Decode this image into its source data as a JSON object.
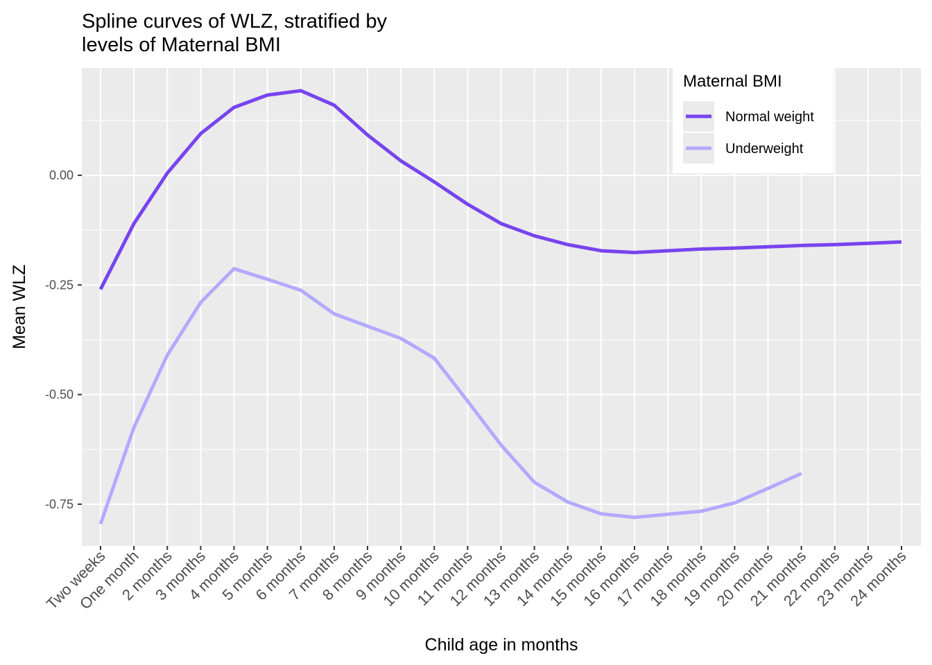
{
  "chart_data": {
    "type": "line",
    "title_lines": [
      "Spline curves of WLZ, stratified by",
      "levels of Maternal BMI"
    ],
    "xlabel": "Child age in months",
    "ylabel": "Mean WLZ",
    "categories": [
      "Two weeks",
      "One month",
      "2 months",
      "3 months",
      "4 months",
      "5 months",
      "6 months",
      "7 months",
      "8 months",
      "9 months",
      "10 months",
      "11 months",
      "12 months",
      "13 months",
      "14 months",
      "15 months",
      "16 months",
      "17 months",
      "18 months",
      "19 months",
      "20 months",
      "21 months",
      "22 months",
      "23 months",
      "24 months"
    ],
    "yticks": [
      0.0,
      -0.25,
      -0.5,
      -0.75
    ],
    "ytick_labels": [
      "0.00",
      "-0.25",
      "-0.50",
      "-0.75"
    ],
    "ylim": [
      -0.845,
      0.245
    ],
    "grid": true,
    "legend": {
      "title": "Maternal BMI",
      "position": "top-right"
    },
    "series": [
      {
        "name": "Normal weight",
        "color": "#7744ee",
        "values": [
          -0.26,
          -0.11,
          0.005,
          0.095,
          0.155,
          0.183,
          0.193,
          0.16,
          0.092,
          0.033,
          -0.015,
          -0.066,
          -0.11,
          -0.138,
          -0.158,
          -0.172,
          -0.176,
          -0.172,
          -0.168,
          -0.166,
          -0.163,
          -0.16,
          -0.158,
          -0.155,
          -0.152
        ]
      },
      {
        "name": "Underweight",
        "color": "#b3aaff",
        "values": [
          -0.795,
          -0.575,
          -0.41,
          -0.29,
          -0.213,
          -0.237,
          -0.262,
          -0.316,
          -0.344,
          -0.372,
          -0.417,
          -0.515,
          -0.615,
          -0.7,
          -0.745,
          -0.772,
          -0.78,
          -0.773,
          -0.766,
          -0.747,
          -0.714,
          -0.68,
          null,
          null,
          null
        ]
      }
    ]
  }
}
